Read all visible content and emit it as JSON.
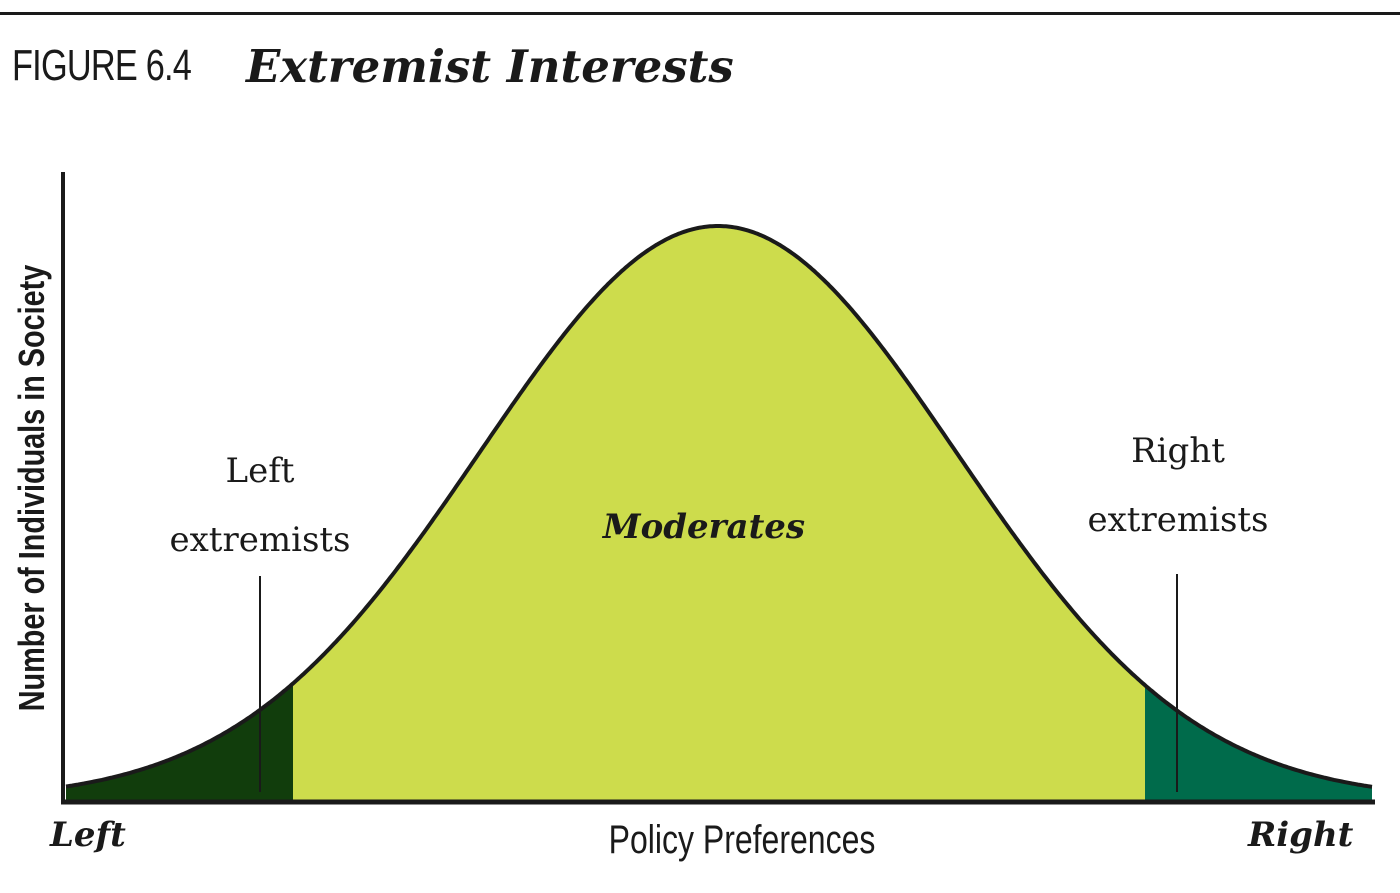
{
  "figure": {
    "number": "FIGURE 6.4",
    "title": "Extremist Interests"
  },
  "axes": {
    "y_label": "Number of Individuals in Society",
    "x_label": "Policy Preferences",
    "x_left_pole": "Left",
    "x_right_pole": "Right"
  },
  "regions": {
    "left": {
      "line1": "Left",
      "line2": "extremists",
      "color": "#113d0c"
    },
    "middle": {
      "label": "Moderates",
      "color": "#cddc4c"
    },
    "right": {
      "line1": "Right",
      "line2": "extremists",
      "color": "#006b4b"
    }
  },
  "colors": {
    "ink": "#1a1a1a"
  }
}
